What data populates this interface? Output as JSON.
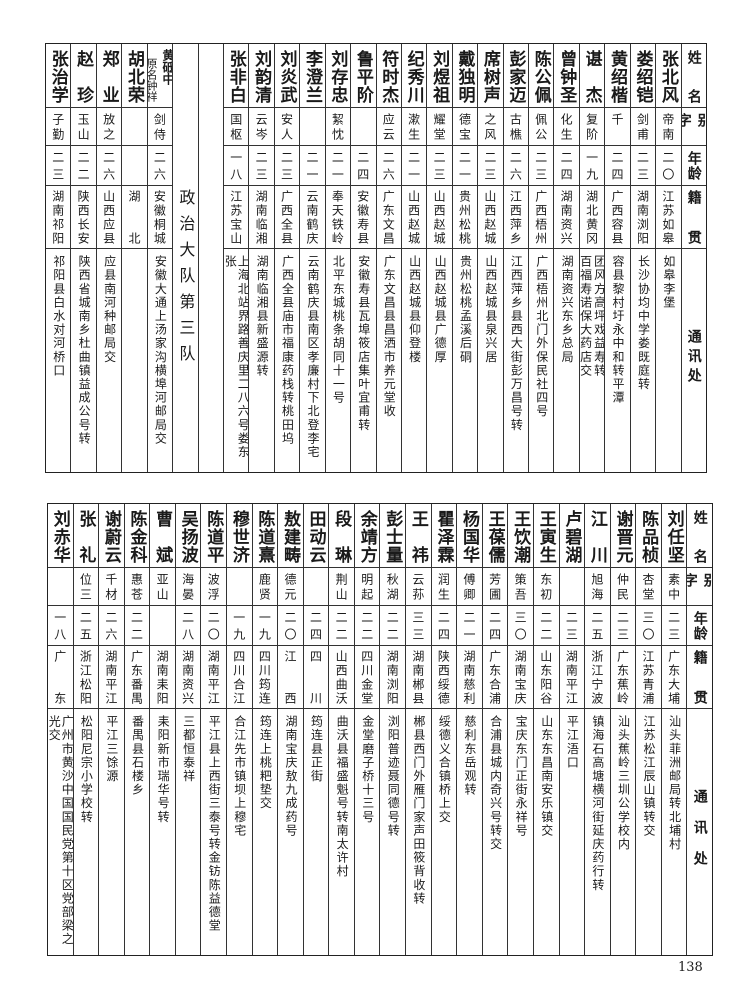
{
  "headers": {
    "name": "姓名",
    "alias": "别字",
    "age": "年龄",
    "native": "籍贯",
    "address": "通讯处"
  },
  "top_table": {
    "rows_right": [
      {
        "name": "张北风",
        "alias": "帝南",
        "age": "二〇",
        "native": "江苏如皋",
        "address": [
          "如皋李堡"
        ]
      },
      {
        "name": "娄绍铠",
        "alias": "剑甫",
        "age": "二三",
        "native": "湖南浏阳",
        "address": [
          "长沙协均中学娄既庭转"
        ]
      },
      {
        "name": "黄绍楷",
        "alias": "千",
        "age": "二四",
        "native": "广西容县",
        "address": [
          "容县黎村圩永中和转平潭"
        ]
      },
      {
        "name": "谌杰",
        "alias": "复阶",
        "age": "一九",
        "native": "湖北黄冈",
        "address": [
          "团风方高坪戏益寿转",
          "百福寿诺保大药店交"
        ]
      },
      {
        "name": "曾钟圣",
        "alias": "化生",
        "age": "二四",
        "native": "湖南资兴",
        "address": [
          "湖南资兴东乡总局"
        ]
      },
      {
        "name": "陈公佩",
        "alias": "佩公",
        "age": "二三",
        "native": "广西梧州",
        "address": [
          "广西梧州北门外保民社四号"
        ]
      },
      {
        "name": "彭家迈",
        "alias": "古樵",
        "age": "二六",
        "native": "江西萍乡",
        "address": [
          "江西萍乡县西大街彭万昌号转"
        ]
      },
      {
        "name": "席树声",
        "alias": "之风",
        "age": "二三",
        "native": "山西赵城",
        "address": [
          "山西赵城县泉兴居"
        ]
      },
      {
        "name": "戴独明",
        "alias": "德宝",
        "age": "二一",
        "native": "贵州松桃",
        "address": [
          "贵州松桃孟溪后硐"
        ]
      },
      {
        "name": "刘煜祖",
        "alias": "耀堂",
        "age": "二三",
        "native": "山西赵城",
        "address": [
          "山西赵城县广德厚"
        ]
      },
      {
        "name": "纪秀川",
        "alias": "漱生",
        "age": "二一",
        "native": "山西赵城",
        "address": [
          "山西赵城县仰登楼"
        ]
      },
      {
        "name": "符时杰",
        "alias": "应云",
        "age": "二六",
        "native": "广东文昌",
        "address": [
          "广东文昌县昌洒市养元堂收"
        ]
      },
      {
        "name": "鲁平阶",
        "alias": "",
        "age": "二四",
        "native": "安徽寿县",
        "address": [
          "安徽寿县瓦埠筱店集叶宜甫转"
        ]
      },
      {
        "name": "刘存忠",
        "alias": "絜忱",
        "age": "二一",
        "native": "奉天铁岭",
        "address": [
          "北平东城桃条胡同十一号"
        ]
      },
      {
        "name": "李澄兰",
        "alias": "",
        "age": "二一",
        "native": "云南鹤庆",
        "address": [
          "云南鹤庆县南区孝廉村下北登李宅"
        ]
      },
      {
        "name": "刘炎武",
        "alias": "安人",
        "age": "二三",
        "native": "广西全县",
        "address": [
          "广西全县庙市福康药栈转桃田坞"
        ]
      },
      {
        "name": "刘韵清",
        "alias": "云岑",
        "age": "二三",
        "native": "湖南临湘",
        "address": [
          "湖南临湘县新盛源转"
        ]
      },
      {
        "name": "张非白",
        "alias": "国枢",
        "age": "一八",
        "native": "江苏宝山",
        "address": [
          "上海北站界路善庆里二八六号娄东张"
        ]
      }
    ],
    "section_title": "政治大队第三队",
    "rows_left": [
      {
        "name": "黄砥中",
        "name_note": "原名钟祥",
        "alias": "剑侍",
        "age": "二六",
        "native": "安徽桐城",
        "address": [
          "安徽大通上汤家沟横埠河邮局交"
        ]
      },
      {
        "name": "胡北荣",
        "alias": "",
        "age": "",
        "native": "湖北",
        "address": [
          ""
        ]
      },
      {
        "name": "郑业",
        "alias": "放之",
        "age": "二六",
        "native": "山西应县",
        "address": [
          "应县南河种邮局交"
        ]
      },
      {
        "name": "赵珍",
        "alias": "玉山",
        "age": "二二",
        "native": "陕西长安",
        "address": [
          "陕西省城南乡杜曲镇益成公号转"
        ]
      },
      {
        "name": "张治学",
        "alias": "子勤",
        "age": "二三",
        "native": "湖南祁阳",
        "address": [
          "祁阳县白水对河桥口"
        ]
      }
    ]
  },
  "bottom_table": {
    "rows": [
      {
        "name": "刘任坚",
        "alias": "素中",
        "age": "二三",
        "native": "广东大埔",
        "address": [
          "汕头菲洲邮局转北埔村"
        ]
      },
      {
        "name": "陈品桢",
        "alias": "杏堂",
        "age": "三〇",
        "native": "江苏青浦",
        "address": [
          "江苏松江辰山镇转交"
        ]
      },
      {
        "name": "谢晋元",
        "alias": "仲民",
        "age": "二三",
        "native": "广东蕉岭",
        "address": [
          "汕头蕉岭三圳公学校内"
        ]
      },
      {
        "name": "江川",
        "alias": "旭海",
        "age": "二五",
        "native": "浙江宁波",
        "address": [
          "镇海石高塘横河街延庆药行转"
        ]
      },
      {
        "name": "卢碧湖",
        "alias": "",
        "age": "二三",
        "native": "湖南平江",
        "address": [
          "平江浯口"
        ]
      },
      {
        "name": "王寅生",
        "alias": "东初",
        "age": "二二",
        "native": "山东阳谷",
        "address": [
          "山东东昌南安乐镇交"
        ]
      },
      {
        "name": "王饮潮",
        "alias": "策吾",
        "age": "三〇",
        "native": "湖南宝庆",
        "address": [
          "宝庆东门正街永祥号"
        ]
      },
      {
        "name": "王葆儒",
        "alias": "芳圃",
        "age": "二四",
        "native": "广东合浦",
        "address": [
          "合浦县城内奇兴号转交"
        ]
      },
      {
        "name": "杨国华",
        "alias": "傅卿",
        "age": "二一",
        "native": "湖南慈利",
        "address": [
          "慈利东岳观转"
        ]
      },
      {
        "name": "瞿泽霖",
        "alias": "润生",
        "age": "二四",
        "native": "陕西绥德",
        "address": [
          "绥德义合镇桥上交"
        ]
      },
      {
        "name": "王祎",
        "alias": "云荪",
        "age": "三三",
        "native": "湖南郴县",
        "address": [
          "郴县西门外雁门家声田筱背收转"
        ]
      },
      {
        "name": "彭士量",
        "alias": "秋湖",
        "age": "二二",
        "native": "湖南浏阳",
        "address": [
          "浏阳普迹聂同德号转"
        ]
      },
      {
        "name": "余靖方",
        "alias": "明起",
        "age": "二二",
        "native": "四川金堂",
        "address": [
          "金堂磨子桥十三号"
        ]
      },
      {
        "name": "段琳",
        "alias": "荆山",
        "age": "二二",
        "native": "山西曲沃",
        "address": [
          "曲沃县福盛魁号转南太许村"
        ]
      },
      {
        "name": "田动云",
        "alias": "",
        "age": "二四",
        "native": "四川",
        "address": [
          "筠连县正街"
        ]
      },
      {
        "name": "敖建畴",
        "alias": "德元",
        "age": "二〇",
        "native": "江西",
        "address": [
          "湖南宝庆敖九成药号"
        ]
      },
      {
        "name": "陈道熹",
        "alias": "鹿贤",
        "age": "一九",
        "native": "四川筠连",
        "address": [
          "筠连上桃粑垫交"
        ]
      },
      {
        "name": "穆世济",
        "alias": "",
        "age": "一九",
        "native": "四川合江",
        "address": [
          "合江先市镇坝上穆宅"
        ]
      },
      {
        "name": "陈道平",
        "alias": "波浮",
        "age": "二〇",
        "native": "湖南平江",
        "address": [
          "平江县上西街三泰号转金钫陈益德堂"
        ]
      },
      {
        "name": "吴扬波",
        "alias": "海晏",
        "age": "二八",
        "native": "湖南资兴",
        "address": [
          "三都恒泰祥"
        ]
      },
      {
        "name": "曹斌",
        "alias": "亚山",
        "age": "",
        "native": "湖南耒阳",
        "address": [
          "耒阳新市瑞华号转"
        ]
      },
      {
        "name": "陈金科",
        "alias": "惠苍",
        "age": "二二",
        "native": "广东番禺",
        "address": [
          "番禺县石楼乡"
        ]
      },
      {
        "name": "谢蔚云",
        "alias": "千材",
        "age": "二六",
        "native": "湖南平江",
        "address": [
          "平江三馀源"
        ]
      },
      {
        "name": "张礼",
        "alias": "位三",
        "age": "二五",
        "native": "浙江松阳",
        "address": [
          "松阳尼宗小学校转"
        ]
      },
      {
        "name": "刘赤华",
        "alias": "",
        "age": "一八",
        "native": "广东",
        "address": [
          "广州市黄沙中国国民党第十区党部梁之光交"
        ]
      }
    ]
  },
  "page_number": "138"
}
